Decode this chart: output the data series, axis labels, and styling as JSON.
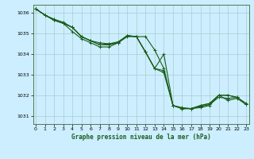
{
  "title": "Graphe pression niveau de la mer (hPa)",
  "bg_color": "#cceeff",
  "grid_color": "#aacccc",
  "line_color": "#1a5c1a",
  "x_ticks": [
    0,
    1,
    2,
    3,
    4,
    5,
    6,
    7,
    8,
    9,
    10,
    11,
    12,
    13,
    14,
    15,
    16,
    17,
    18,
    19,
    20,
    21,
    22,
    23
  ],
  "y_ticks": [
    1031,
    1032,
    1033,
    1034,
    1035,
    1036
  ],
  "ylim": [
    1030.6,
    1036.4
  ],
  "xlim": [
    -0.3,
    23.3
  ],
  "series": [
    [
      1036.2,
      1035.9,
      1035.7,
      1035.55,
      1035.3,
      1034.85,
      1034.65,
      1034.55,
      1034.5,
      1034.55,
      1034.9,
      1034.85,
      1034.1,
      1033.3,
      1033.2,
      1031.5,
      1031.4,
      1031.35,
      1031.4,
      1031.5,
      1032.0,
      1032.0,
      1031.9,
      1031.6
    ],
    [
      1036.2,
      1035.9,
      1035.65,
      1035.5,
      1035.3,
      1034.85,
      1034.65,
      1034.45,
      1034.5,
      1034.6,
      1034.9,
      1034.85,
      1034.85,
      1034.2,
      1033.3,
      1031.5,
      1031.35,
      1031.35,
      1031.5,
      1031.6,
      1032.0,
      1032.0,
      1031.9,
      1031.55
    ],
    [
      1036.2,
      1035.9,
      1035.65,
      1035.5,
      1035.1,
      1034.75,
      1034.55,
      1034.35,
      1034.35,
      1034.55,
      1034.85,
      1034.85,
      1034.1,
      1033.3,
      1033.1,
      1031.5,
      1031.35,
      1031.35,
      1031.45,
      1031.55,
      1031.9,
      1031.85,
      1031.9,
      1031.55
    ],
    [
      1036.2,
      1035.9,
      1035.65,
      1035.5,
      1035.3,
      1034.85,
      1034.65,
      1034.45,
      1034.45,
      1034.55,
      1034.9,
      1034.85,
      1034.1,
      1033.3,
      1034.0,
      1031.5,
      1031.35,
      1031.35,
      1031.5,
      1031.6,
      1032.0,
      1031.75,
      1031.85,
      1031.55
    ]
  ]
}
